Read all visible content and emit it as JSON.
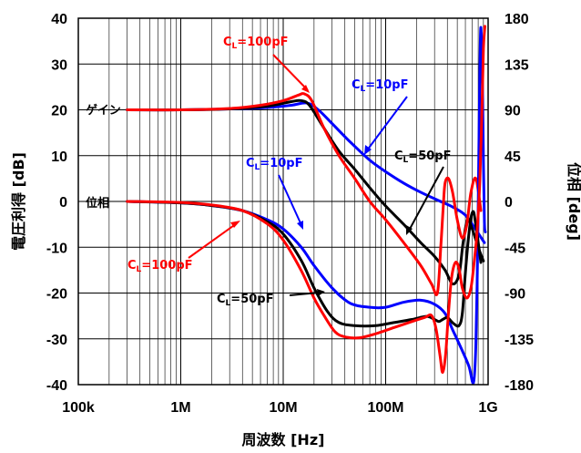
{
  "chart_data": {
    "type": "line",
    "x_axis": {
      "label": "周波数 [Hz]",
      "scale": "log",
      "range": [
        100000,
        1000000000
      ],
      "ticks": [
        {
          "value": 100000,
          "label": "100k"
        },
        {
          "value": 1000000,
          "label": "1M"
        },
        {
          "value": 10000000,
          "label": "10M"
        },
        {
          "value": 100000000,
          "label": "100M"
        },
        {
          "value": 1000000000,
          "label": "1G"
        }
      ]
    },
    "y_axis_left": {
      "label": "電圧利得 [dB]",
      "range": [
        -40,
        40
      ],
      "ticks": [
        "-40",
        "-30",
        "-20",
        "-10",
        "0",
        "10",
        "20",
        "30",
        "40"
      ]
    },
    "y_axis_right": {
      "label": "位相 [deg]",
      "range": [
        -180,
        180
      ],
      "ticks": [
        "-180",
        "-135",
        "-90",
        "-45",
        "0",
        "45",
        "90",
        "135",
        "180"
      ]
    },
    "grid": true,
    "series": [
      {
        "curve": "gain",
        "load": "10pF",
        "color": "#0000ff",
        "points": [
          [
            300000,
            20
          ],
          [
            1000000,
            20
          ],
          [
            3000000,
            20.2
          ],
          [
            7000000,
            20.5
          ],
          [
            12000000,
            21
          ],
          [
            17000000,
            21.5
          ],
          [
            22000000,
            20
          ],
          [
            30000000,
            17
          ],
          [
            45000000,
            13
          ],
          [
            70000000,
            9
          ],
          [
            100000000,
            6.5
          ],
          [
            150000000,
            4
          ],
          [
            220000000,
            2
          ],
          [
            320000000,
            0.3
          ],
          [
            450000000,
            -1.2
          ],
          [
            600000000,
            -3
          ],
          [
            750000000,
            -6
          ],
          [
            920000000,
            -9
          ]
        ]
      },
      {
        "curve": "gain",
        "load": "50pF",
        "color": "#000000",
        "points": [
          [
            300000,
            20
          ],
          [
            1000000,
            20
          ],
          [
            3000000,
            20.2
          ],
          [
            7000000,
            20.8
          ],
          [
            12000000,
            21.8
          ],
          [
            15000000,
            22
          ],
          [
            18000000,
            21
          ],
          [
            25000000,
            16
          ],
          [
            35000000,
            11
          ],
          [
            50000000,
            7
          ],
          [
            70000000,
            3
          ],
          [
            100000000,
            -1
          ],
          [
            150000000,
            -5
          ],
          [
            220000000,
            -9
          ],
          [
            300000000,
            -12
          ],
          [
            380000000,
            -15
          ],
          [
            450000000,
            -18
          ],
          [
            520000000,
            -16
          ],
          [
            570000000,
            -9
          ],
          [
            630000000,
            -4
          ],
          [
            700000000,
            -6
          ],
          [
            800000000,
            -10
          ],
          [
            900000000,
            -13
          ]
        ]
      },
      {
        "curve": "gain",
        "load": "100pF",
        "color": "#ff0000",
        "points": [
          [
            300000,
            20
          ],
          [
            1000000,
            20
          ],
          [
            3000000,
            20.3
          ],
          [
            6000000,
            21
          ],
          [
            10000000,
            22
          ],
          [
            14000000,
            23.2
          ],
          [
            16000000,
            23.5
          ],
          [
            19000000,
            22
          ],
          [
            25000000,
            16
          ],
          [
            35000000,
            10
          ],
          [
            50000000,
            5
          ],
          [
            70000000,
            0
          ],
          [
            100000000,
            -4
          ],
          [
            150000000,
            -9
          ],
          [
            220000000,
            -14
          ],
          [
            280000000,
            -18
          ],
          [
            320000000,
            -20
          ],
          [
            345000000,
            -10
          ],
          [
            365000000,
            -1
          ],
          [
            380000000,
            4
          ],
          [
            410000000,
            5
          ],
          [
            450000000,
            2
          ],
          [
            500000000,
            -4
          ],
          [
            560000000,
            -8
          ],
          [
            620000000,
            -5
          ],
          [
            680000000,
            2
          ],
          [
            760000000,
            5
          ],
          [
            850000000,
            -2
          ]
        ]
      },
      {
        "curve": "phase",
        "load": "10pF",
        "color": "#0000ff",
        "points": [
          [
            300000,
            0
          ],
          [
            1000000,
            -1.5
          ],
          [
            2000000,
            -4
          ],
          [
            4000000,
            -9
          ],
          [
            7000000,
            -18
          ],
          [
            10000000,
            -27
          ],
          [
            15000000,
            -45
          ],
          [
            20000000,
            -63
          ],
          [
            30000000,
            -85
          ],
          [
            45000000,
            -100
          ],
          [
            70000000,
            -104
          ],
          [
            100000000,
            -104
          ],
          [
            150000000,
            -99
          ],
          [
            220000000,
            -97
          ],
          [
            300000000,
            -101
          ],
          [
            380000000,
            -110
          ],
          [
            450000000,
            -126
          ],
          [
            550000000,
            -145
          ],
          [
            650000000,
            -162
          ],
          [
            720000000,
            -178
          ],
          [
            760000000,
            -140
          ],
          [
            790000000,
            -50
          ],
          [
            810000000,
            40
          ],
          [
            830000000,
            125
          ],
          [
            850000000,
            171
          ],
          [
            880000000,
            120
          ],
          [
            900000000,
            40
          ],
          [
            920000000,
            -20
          ],
          [
            940000000,
            -30
          ]
        ]
      },
      {
        "curve": "phase",
        "load": "50pF",
        "color": "#000000",
        "points": [
          [
            300000,
            0
          ],
          [
            1000000,
            -1.5
          ],
          [
            2000000,
            -4
          ],
          [
            4000000,
            -9
          ],
          [
            7000000,
            -20
          ],
          [
            10000000,
            -32
          ],
          [
            15000000,
            -58
          ],
          [
            20000000,
            -85
          ],
          [
            27000000,
            -108
          ],
          [
            35000000,
            -119
          ],
          [
            50000000,
            -122
          ],
          [
            80000000,
            -122
          ],
          [
            120000000,
            -119
          ],
          [
            180000000,
            -116
          ],
          [
            250000000,
            -113
          ],
          [
            300000000,
            -116
          ],
          [
            330000000,
            -118
          ],
          [
            360000000,
            -116
          ],
          [
            400000000,
            -114
          ],
          [
            430000000,
            -117
          ],
          [
            460000000,
            -120
          ],
          [
            520000000,
            -122
          ],
          [
            560000000,
            -110
          ],
          [
            600000000,
            -70
          ],
          [
            640000000,
            -38
          ],
          [
            680000000,
            -16
          ],
          [
            720000000,
            -10
          ],
          [
            750000000,
            -20
          ],
          [
            800000000,
            -40
          ],
          [
            850000000,
            -60
          ]
        ]
      },
      {
        "curve": "phase",
        "load": "100pF",
        "color": "#ff0000",
        "points": [
          [
            300000,
            0
          ],
          [
            1000000,
            -1
          ],
          [
            2000000,
            -3.5
          ],
          [
            4000000,
            -9
          ],
          [
            7000000,
            -22
          ],
          [
            10000000,
            -38
          ],
          [
            15000000,
            -68
          ],
          [
            20000000,
            -95
          ],
          [
            25000000,
            -112
          ],
          [
            32000000,
            -128
          ],
          [
            40000000,
            -133
          ],
          [
            55000000,
            -134
          ],
          [
            80000000,
            -130
          ],
          [
            120000000,
            -124
          ],
          [
            180000000,
            -118
          ],
          [
            240000000,
            -114
          ],
          [
            280000000,
            -112
          ],
          [
            310000000,
            -125
          ],
          [
            340000000,
            -152
          ],
          [
            360000000,
            -168
          ],
          [
            385000000,
            -150
          ],
          [
            410000000,
            -110
          ],
          [
            440000000,
            -75
          ],
          [
            480000000,
            -60
          ],
          [
            520000000,
            -66
          ],
          [
            560000000,
            -85
          ],
          [
            620000000,
            -95
          ],
          [
            680000000,
            -85
          ],
          [
            730000000,
            -60
          ],
          [
            780000000,
            -30
          ],
          [
            830000000,
            20
          ],
          [
            870000000,
            90
          ],
          [
            900000000,
            150
          ],
          [
            930000000,
            172
          ]
        ]
      }
    ],
    "annotations": [
      {
        "text": "C",
        "sub": "L",
        "rest": "=100pF",
        "color": "#ff0000"
      },
      {
        "text": "C",
        "sub": "L",
        "rest": "=10pF",
        "color": "#0000ff"
      },
      {
        "text": "ゲイン",
        "color": "#000000"
      },
      {
        "text": "C",
        "sub": "L",
        "rest": "=50pF",
        "color": "#000000"
      },
      {
        "text": "C",
        "sub": "L",
        "rest": "=10pF",
        "color": "#0000ff"
      },
      {
        "text": "位相",
        "color": "#000000"
      },
      {
        "text": "C",
        "sub": "L",
        "rest": "=100pF",
        "color": "#ff0000"
      },
      {
        "text": "C",
        "sub": "L",
        "rest": "=50pF",
        "color": "#000000"
      }
    ]
  }
}
